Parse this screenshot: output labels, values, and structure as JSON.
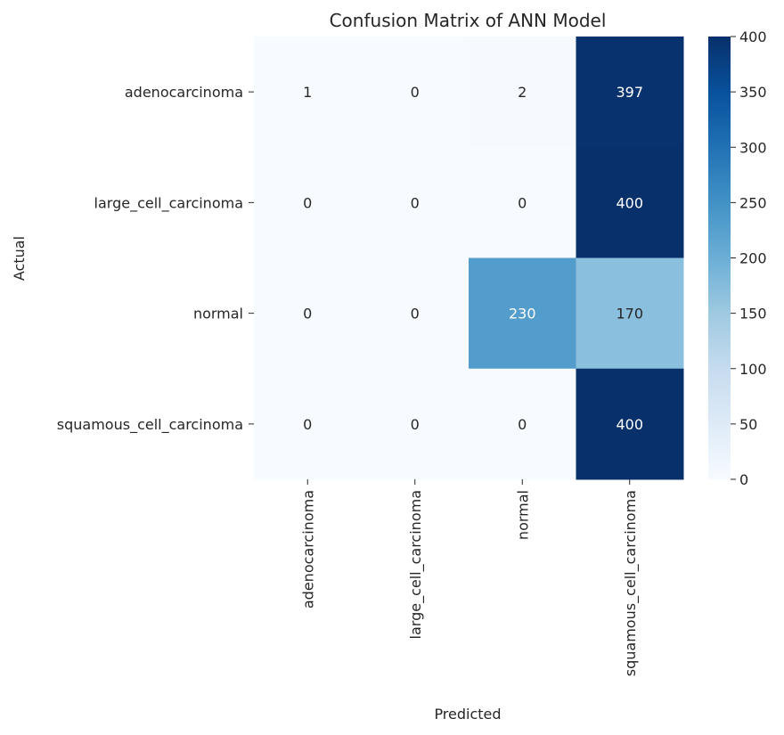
{
  "chart_data": {
    "type": "heatmap",
    "title": "Confusion Matrix of ANN Model",
    "xlabel": "Predicted",
    "ylabel": "Actual",
    "x_categories": [
      "adenocarcinoma",
      "large_cell_carcinoma",
      "normal",
      "squamous_cell_carcinoma"
    ],
    "y_categories": [
      "adenocarcinoma",
      "large_cell_carcinoma",
      "normal",
      "squamous_cell_carcinoma"
    ],
    "values": [
      [
        1,
        0,
        2,
        397
      ],
      [
        0,
        0,
        0,
        400
      ],
      [
        0,
        0,
        230,
        170
      ],
      [
        0,
        0,
        0,
        400
      ]
    ],
    "colormap": "Blues",
    "vmin": 0,
    "vmax": 400,
    "colorbar_ticks": [
      0,
      50,
      100,
      150,
      200,
      250,
      300,
      350,
      400
    ]
  }
}
